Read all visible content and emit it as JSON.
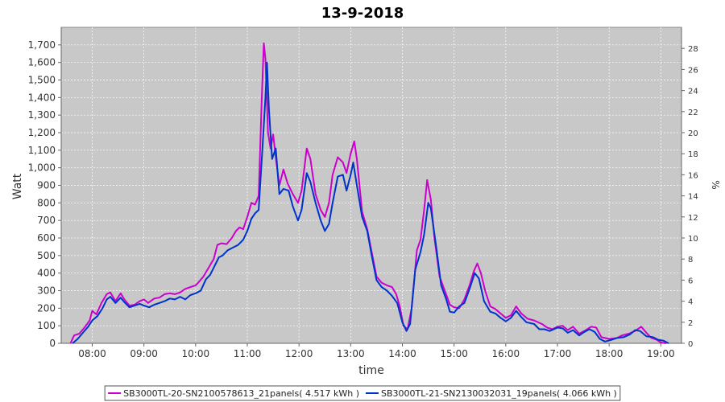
{
  "chart_data": {
    "type": "line",
    "title": "13-9-2018",
    "xlabel": "time",
    "ylabel": "Watt",
    "y2label": "%",
    "x_ticks": [
      "08:00",
      "09:00",
      "10:00",
      "11:00",
      "12:00",
      "13:00",
      "14:00",
      "15:00",
      "16:00",
      "17:00",
      "18:00",
      "19:00"
    ],
    "x_ticks_hours": [
      8,
      9,
      10,
      11,
      12,
      13,
      14,
      15,
      16,
      17,
      18,
      19
    ],
    "xlim_hours": [
      7.4,
      19.4
    ],
    "ylim": [
      0,
      1800
    ],
    "y_ticks": [
      0,
      100,
      200,
      300,
      400,
      500,
      600,
      700,
      800,
      900,
      1000,
      1100,
      1200,
      1300,
      1400,
      1500,
      1600,
      1700
    ],
    "y_tick_labels": [
      "0",
      "100",
      "200",
      "300",
      "400",
      "500",
      "600",
      "700",
      "800",
      "900",
      "1,000",
      "1,100",
      "1,200",
      "1,300",
      "1,400",
      "1,500",
      "1,600",
      "1,700"
    ],
    "y2lim": [
      0,
      30
    ],
    "y2_ticks": [
      0,
      2,
      4,
      6,
      8,
      10,
      12,
      14,
      16,
      18,
      20,
      22,
      24,
      26,
      28
    ],
    "grid": true,
    "background_color": "#c8c8c8",
    "legend_position": "bottom",
    "x_unit": "hours",
    "series": [
      {
        "name": "SB3000TL-20-SN2100578613_21panels( 4.517 kWh )",
        "color": "#cc00cc",
        "points": [
          [
            7.58,
            0
          ],
          [
            7.65,
            45
          ],
          [
            7.75,
            55
          ],
          [
            7.85,
            90
          ],
          [
            7.95,
            130
          ],
          [
            8.0,
            185
          ],
          [
            8.08,
            165
          ],
          [
            8.18,
            230
          ],
          [
            8.28,
            280
          ],
          [
            8.35,
            290
          ],
          [
            8.45,
            240
          ],
          [
            8.55,
            285
          ],
          [
            8.62,
            250
          ],
          [
            8.72,
            215
          ],
          [
            8.82,
            220
          ],
          [
            8.92,
            240
          ],
          [
            9.0,
            250
          ],
          [
            9.08,
            230
          ],
          [
            9.2,
            255
          ],
          [
            9.3,
            260
          ],
          [
            9.4,
            280
          ],
          [
            9.5,
            285
          ],
          [
            9.6,
            280
          ],
          [
            9.7,
            290
          ],
          [
            9.8,
            310
          ],
          [
            9.9,
            320
          ],
          [
            10.0,
            330
          ],
          [
            10.05,
            345
          ],
          [
            10.15,
            380
          ],
          [
            10.25,
            430
          ],
          [
            10.35,
            480
          ],
          [
            10.42,
            560
          ],
          [
            10.5,
            570
          ],
          [
            10.6,
            565
          ],
          [
            10.7,
            600
          ],
          [
            10.78,
            640
          ],
          [
            10.85,
            660
          ],
          [
            10.92,
            650
          ],
          [
            11.0,
            720
          ],
          [
            11.08,
            800
          ],
          [
            11.15,
            790
          ],
          [
            11.22,
            840
          ],
          [
            11.28,
            1400
          ],
          [
            11.32,
            1710
          ],
          [
            11.35,
            1620
          ],
          [
            11.4,
            1200
          ],
          [
            11.45,
            1110
          ],
          [
            11.5,
            1190
          ],
          [
            11.55,
            1060
          ],
          [
            11.62,
            900
          ],
          [
            11.7,
            990
          ],
          [
            11.78,
            910
          ],
          [
            11.88,
            850
          ],
          [
            11.98,
            800
          ],
          [
            12.05,
            870
          ],
          [
            12.15,
            1110
          ],
          [
            12.22,
            1050
          ],
          [
            12.32,
            850
          ],
          [
            12.42,
            760
          ],
          [
            12.5,
            720
          ],
          [
            12.58,
            800
          ],
          [
            12.65,
            960
          ],
          [
            12.75,
            1060
          ],
          [
            12.85,
            1030
          ],
          [
            12.92,
            970
          ],
          [
            13.0,
            1080
          ],
          [
            13.07,
            1150
          ],
          [
            13.12,
            1050
          ],
          [
            13.22,
            750
          ],
          [
            13.32,
            650
          ],
          [
            13.4,
            530
          ],
          [
            13.5,
            380
          ],
          [
            13.6,
            345
          ],
          [
            13.7,
            330
          ],
          [
            13.8,
            320
          ],
          [
            13.88,
            280
          ],
          [
            13.95,
            210
          ],
          [
            14.02,
            100
          ],
          [
            14.1,
            80
          ],
          [
            14.18,
            200
          ],
          [
            14.28,
            530
          ],
          [
            14.35,
            590
          ],
          [
            14.42,
            760
          ],
          [
            14.48,
            930
          ],
          [
            14.55,
            820
          ],
          [
            14.62,
            600
          ],
          [
            14.72,
            380
          ],
          [
            14.82,
            300
          ],
          [
            14.92,
            220
          ],
          [
            15.0,
            205
          ],
          [
            15.1,
            200
          ],
          [
            15.2,
            250
          ],
          [
            15.3,
            330
          ],
          [
            15.38,
            410
          ],
          [
            15.45,
            455
          ],
          [
            15.52,
            400
          ],
          [
            15.6,
            300
          ],
          [
            15.7,
            210
          ],
          [
            15.8,
            195
          ],
          [
            15.9,
            170
          ],
          [
            16.0,
            145
          ],
          [
            16.1,
            160
          ],
          [
            16.2,
            210
          ],
          [
            16.3,
            170
          ],
          [
            16.42,
            140
          ],
          [
            16.55,
            130
          ],
          [
            16.7,
            110
          ],
          [
            16.8,
            90
          ],
          [
            16.9,
            80
          ],
          [
            17.0,
            95
          ],
          [
            17.1,
            100
          ],
          [
            17.2,
            75
          ],
          [
            17.3,
            95
          ],
          [
            17.42,
            55
          ],
          [
            17.55,
            75
          ],
          [
            17.65,
            95
          ],
          [
            17.75,
            90
          ],
          [
            17.85,
            35
          ],
          [
            18.0,
            25
          ],
          [
            18.15,
            30
          ],
          [
            18.25,
            45
          ],
          [
            18.38,
            55
          ],
          [
            18.5,
            70
          ],
          [
            18.62,
            95
          ],
          [
            18.72,
            60
          ],
          [
            18.82,
            30
          ],
          [
            18.92,
            20
          ],
          [
            19.0,
            5
          ],
          [
            19.1,
            0
          ]
        ]
      },
      {
        "name": "SB3000TL-21-SN2130032031_19panels( 4.066 kWh )",
        "color": "#0033cc",
        "points": [
          [
            7.62,
            0
          ],
          [
            7.72,
            25
          ],
          [
            7.82,
            60
          ],
          [
            7.92,
            95
          ],
          [
            8.0,
            130
          ],
          [
            8.1,
            155
          ],
          [
            8.2,
            200
          ],
          [
            8.28,
            250
          ],
          [
            8.35,
            265
          ],
          [
            8.45,
            230
          ],
          [
            8.55,
            260
          ],
          [
            8.62,
            235
          ],
          [
            8.72,
            205
          ],
          [
            8.82,
            215
          ],
          [
            8.92,
            225
          ],
          [
            9.0,
            215
          ],
          [
            9.1,
            205
          ],
          [
            9.2,
            220
          ],
          [
            9.3,
            230
          ],
          [
            9.4,
            240
          ],
          [
            9.5,
            255
          ],
          [
            9.6,
            250
          ],
          [
            9.7,
            265
          ],
          [
            9.8,
            250
          ],
          [
            9.9,
            275
          ],
          [
            10.0,
            285
          ],
          [
            10.1,
            300
          ],
          [
            10.2,
            365
          ],
          [
            10.28,
            390
          ],
          [
            10.35,
            430
          ],
          [
            10.45,
            490
          ],
          [
            10.52,
            500
          ],
          [
            10.62,
            530
          ],
          [
            10.72,
            545
          ],
          [
            10.82,
            560
          ],
          [
            10.92,
            590
          ],
          [
            11.0,
            640
          ],
          [
            11.08,
            710
          ],
          [
            11.15,
            740
          ],
          [
            11.22,
            760
          ],
          [
            11.3,
            1150
          ],
          [
            11.35,
            1400
          ],
          [
            11.38,
            1600
          ],
          [
            11.42,
            1330
          ],
          [
            11.48,
            1050
          ],
          [
            11.55,
            1110
          ],
          [
            11.62,
            850
          ],
          [
            11.7,
            880
          ],
          [
            11.8,
            870
          ],
          [
            11.88,
            780
          ],
          [
            11.98,
            700
          ],
          [
            12.05,
            760
          ],
          [
            12.15,
            970
          ],
          [
            12.22,
            920
          ],
          [
            12.32,
            800
          ],
          [
            12.42,
            700
          ],
          [
            12.5,
            640
          ],
          [
            12.58,
            680
          ],
          [
            12.65,
            800
          ],
          [
            12.75,
            950
          ],
          [
            12.85,
            960
          ],
          [
            12.92,
            870
          ],
          [
            13.0,
            960
          ],
          [
            13.05,
            1030
          ],
          [
            13.12,
            900
          ],
          [
            13.22,
            720
          ],
          [
            13.32,
            640
          ],
          [
            13.4,
            510
          ],
          [
            13.5,
            360
          ],
          [
            13.6,
            320
          ],
          [
            13.7,
            300
          ],
          [
            13.8,
            270
          ],
          [
            13.9,
            230
          ],
          [
            14.0,
            120
          ],
          [
            14.08,
            70
          ],
          [
            14.15,
            110
          ],
          [
            14.25,
            420
          ],
          [
            14.35,
            520
          ],
          [
            14.42,
            620
          ],
          [
            14.5,
            800
          ],
          [
            14.55,
            770
          ],
          [
            14.65,
            560
          ],
          [
            14.75,
            330
          ],
          [
            14.85,
            250
          ],
          [
            14.92,
            180
          ],
          [
            15.0,
            175
          ],
          [
            15.1,
            210
          ],
          [
            15.2,
            230
          ],
          [
            15.3,
            310
          ],
          [
            15.4,
            400
          ],
          [
            15.48,
            370
          ],
          [
            15.58,
            240
          ],
          [
            15.7,
            180
          ],
          [
            15.8,
            170
          ],
          [
            15.9,
            145
          ],
          [
            16.0,
            125
          ],
          [
            16.1,
            145
          ],
          [
            16.2,
            185
          ],
          [
            16.3,
            150
          ],
          [
            16.4,
            120
          ],
          [
            16.55,
            110
          ],
          [
            16.65,
            80
          ],
          [
            16.75,
            80
          ],
          [
            16.85,
            70
          ],
          [
            17.0,
            90
          ],
          [
            17.1,
            85
          ],
          [
            17.2,
            60
          ],
          [
            17.3,
            75
          ],
          [
            17.42,
            45
          ],
          [
            17.52,
            65
          ],
          [
            17.62,
            80
          ],
          [
            17.72,
            65
          ],
          [
            17.82,
            25
          ],
          [
            17.92,
            10
          ],
          [
            18.05,
            20
          ],
          [
            18.15,
            30
          ],
          [
            18.28,
            35
          ],
          [
            18.4,
            50
          ],
          [
            18.5,
            75
          ],
          [
            18.6,
            70
          ],
          [
            18.72,
            40
          ],
          [
            18.85,
            35
          ],
          [
            18.95,
            20
          ],
          [
            19.05,
            15
          ],
          [
            19.15,
            0
          ]
        ]
      }
    ]
  }
}
